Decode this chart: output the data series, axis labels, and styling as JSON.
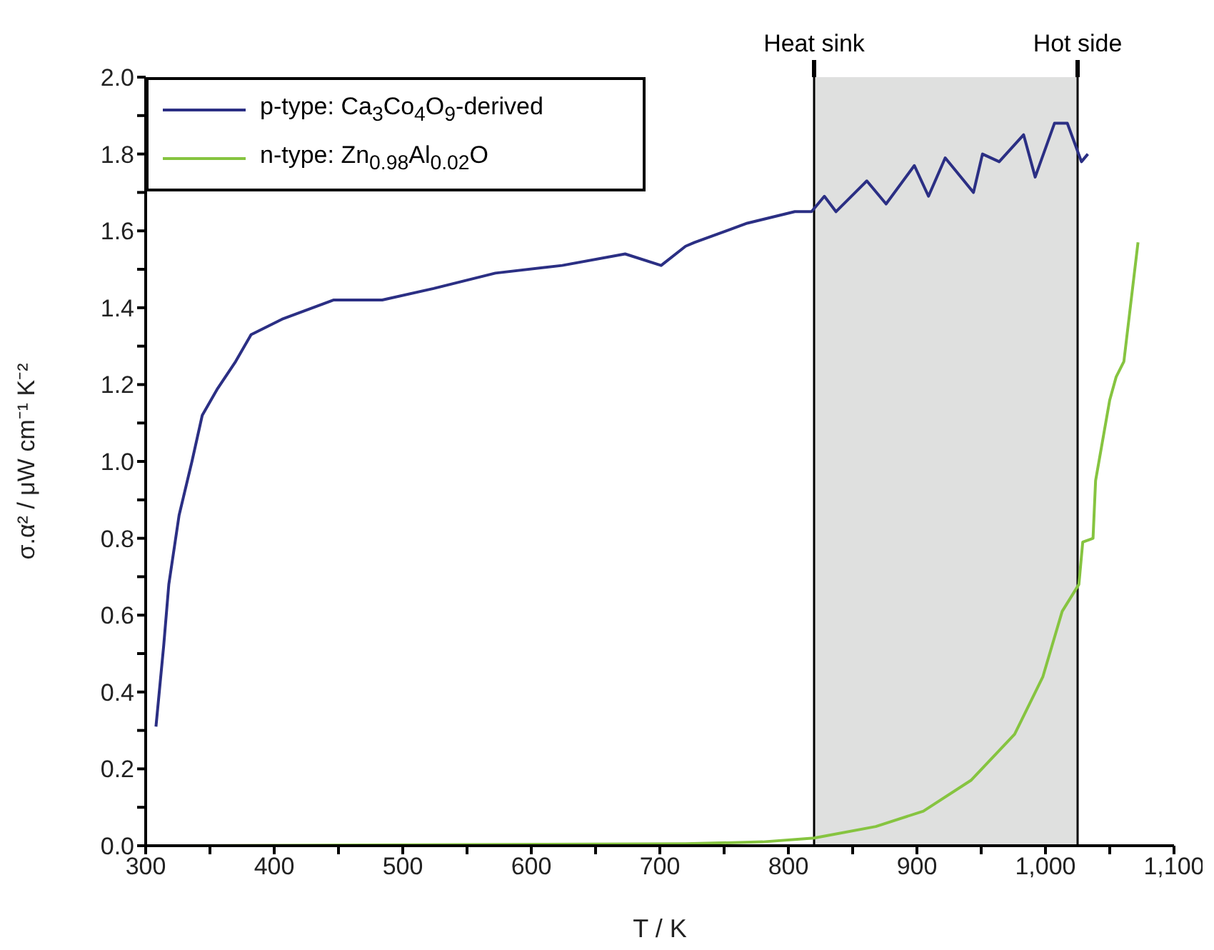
{
  "chart_data": {
    "type": "line",
    "xlabel": "T / K",
    "ylabel": "σ.α² / μW cm⁻¹ K⁻²",
    "xlim": [
      300,
      1100
    ],
    "ylim": [
      0,
      2.0
    ],
    "xticks": [
      300,
      {
        "value": 350,
        "label": null
      },
      400,
      {
        "value": 450,
        "label": null
      },
      500,
      {
        "value": 550,
        "label": null
      },
      600,
      {
        "value": 650,
        "label": null
      },
      700,
      {
        "value": 750,
        "label": null
      },
      800,
      {
        "value": 850,
        "label": null
      },
      900,
      {
        "value": 950,
        "label": null
      },
      {
        "value": 1000,
        "label": "1,000"
      },
      {
        "value": 1050,
        "label": null
      },
      {
        "value": 1100,
        "label": "1,100"
      }
    ],
    "yticks": [
      {
        "value": 0,
        "label": "0.0"
      },
      {
        "value": 0.1,
        "label": null
      },
      0.2,
      {
        "value": 0.3,
        "label": null
      },
      0.4,
      {
        "value": 0.5,
        "label": null
      },
      0.6,
      {
        "value": 0.7,
        "label": null
      },
      0.8,
      {
        "value": 0.9,
        "label": null
      },
      {
        "value": 1,
        "label": "1.0"
      },
      {
        "value": 1.1,
        "label": null
      },
      1.2,
      {
        "value": 1.3,
        "label": null
      },
      1.4,
      {
        "value": 1.5,
        "label": null
      },
      1.6,
      {
        "value": 1.7,
        "label": null
      },
      1.8,
      {
        "value": 1.9,
        "label": null
      },
      {
        "value": 2,
        "label": "2.0"
      }
    ],
    "legend": "top left",
    "marker": "none",
    "line_style": "solid",
    "series": [
      {
        "name": "p-type: Ca$_{3}$Co$_{4}$O$_{9}$-derived",
        "color": "#2b2f84",
        "x": [
          308,
          314,
          318,
          326,
          336,
          344,
          356,
          370,
          382,
          406,
          446,
          484,
          524,
          572,
          624,
          673,
          701,
          720,
          727,
          768,
          805,
          818,
          828,
          837,
          861,
          876,
          898,
          909,
          922,
          944,
          951,
          964,
          983,
          992,
          1007,
          1017,
          1028,
          1033
        ],
        "values": [
          0.31,
          0.52,
          0.68,
          0.86,
          1.0,
          1.12,
          1.19,
          1.26,
          1.33,
          1.37,
          1.42,
          1.42,
          1.45,
          1.49,
          1.51,
          1.54,
          1.51,
          1.56,
          1.57,
          1.62,
          1.65,
          1.65,
          1.69,
          1.65,
          1.73,
          1.67,
          1.77,
          1.69,
          1.79,
          1.7,
          1.8,
          1.78,
          1.85,
          1.74,
          1.88,
          1.88,
          1.78,
          1.8
        ]
      },
      {
        "name": "n-type: Zn$_{0.98}$Al$_{0.02}$O",
        "color": "#86c440",
        "x": [
          310,
          720,
          780,
          820,
          868,
          905,
          942,
          976,
          998,
          1013,
          1026,
          1029,
          1037,
          1039,
          1050,
          1055,
          1061,
          1072
        ],
        "values": [
          0.0,
          0.005,
          0.01,
          0.02,
          0.05,
          0.09,
          0.17,
          0.29,
          0.44,
          0.61,
          0.68,
          0.79,
          0.8,
          0.95,
          1.16,
          1.22,
          1.26,
          1.57
        ]
      }
    ],
    "bands": [
      {
        "axis": "x",
        "from": 820,
        "to": 1025,
        "color": "#dfe0df"
      }
    ],
    "ref_lines": [
      {
        "axis": "x",
        "value": 820,
        "label": "Heat sink",
        "color": "#000000"
      },
      {
        "axis": "x",
        "value": 1025,
        "label": "Hot side",
        "color": "#000000"
      }
    ]
  }
}
